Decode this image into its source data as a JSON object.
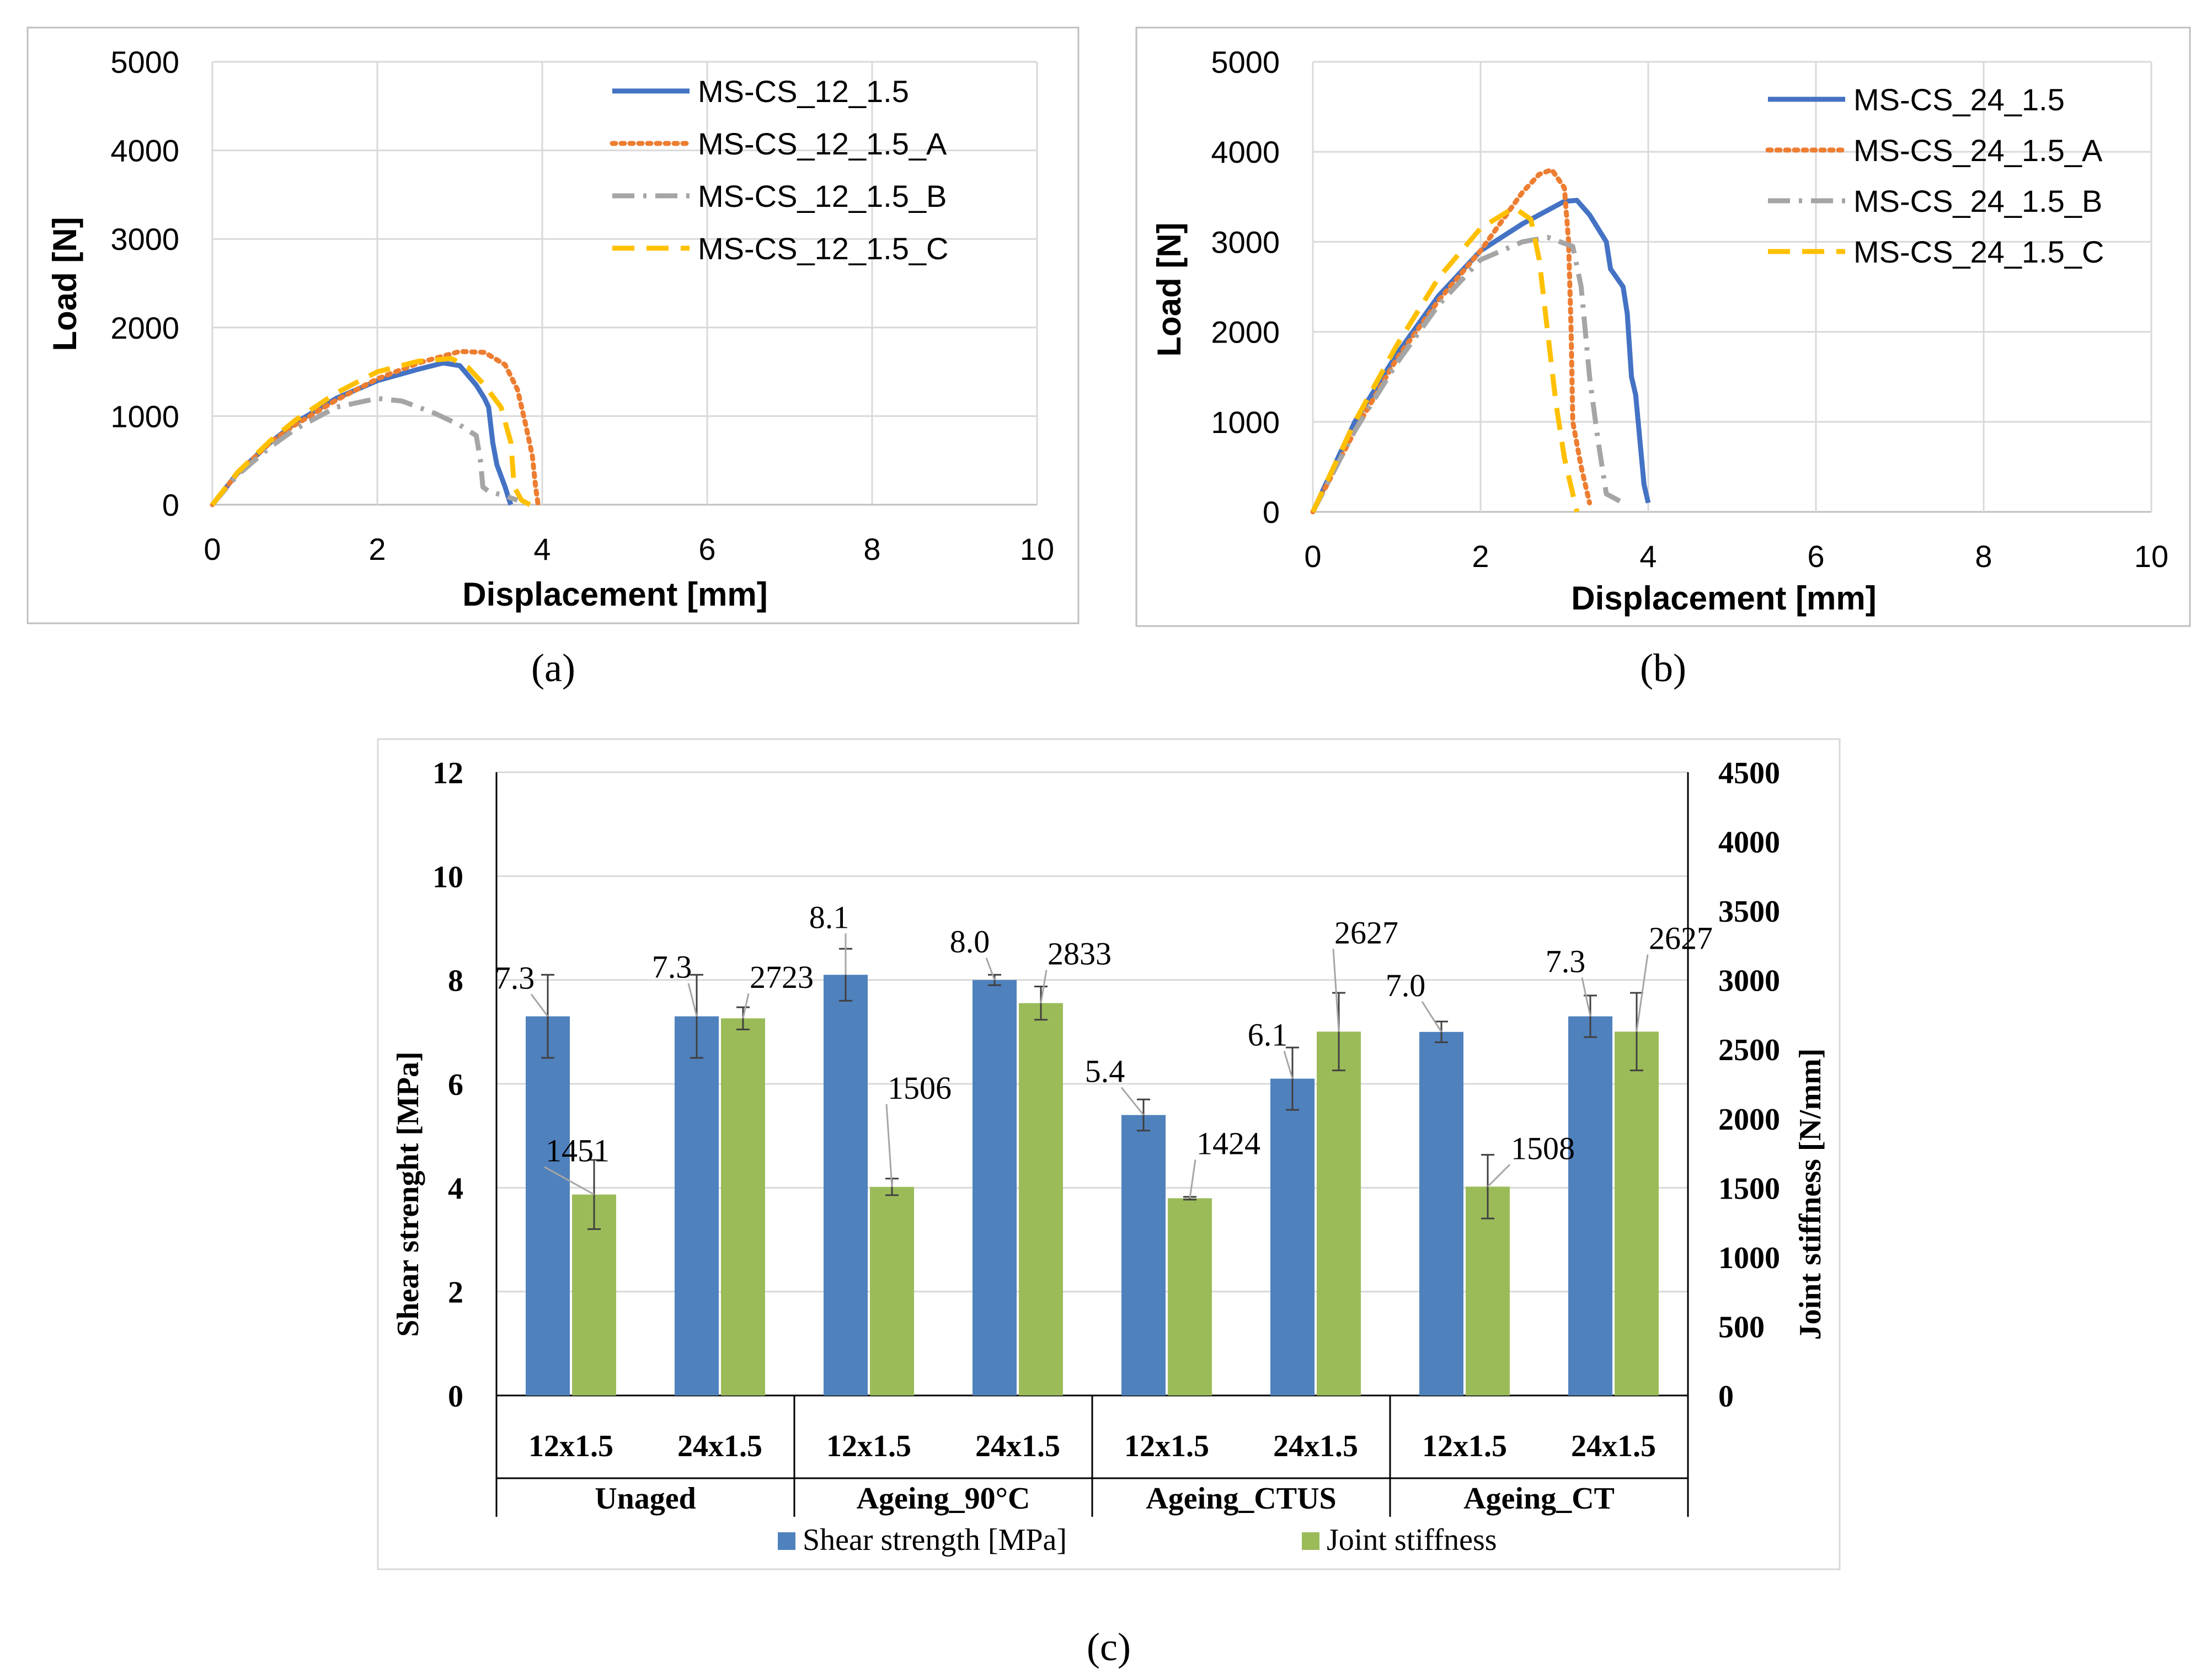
{
  "colors": {
    "blue": "#4472C4",
    "orange": "#ED7D31",
    "gray": "#A5A5A5",
    "yellow": "#FFC000",
    "bar_blue": "#4F81BD",
    "bar_green": "#9BBB59",
    "grid": "#D9D9D9",
    "frame": "#BFBFBF"
  },
  "panel_labels": {
    "a": "(a)",
    "b": "(b)",
    "c": "(c)"
  },
  "chart_data": [
    {
      "id": "a",
      "type": "line",
      "xlabel": "Displacement [mm]",
      "ylabel": "Load [N]",
      "xlim": [
        0,
        10
      ],
      "ylim": [
        0,
        5000
      ],
      "x_ticks": [
        "0",
        "2",
        "4",
        "6",
        "8",
        "10"
      ],
      "y_ticks": [
        "0",
        "1000",
        "2000",
        "3000",
        "4000",
        "5000"
      ],
      "legend_position": "top-right",
      "series": [
        {
          "name": "MS-CS_12_1.5",
          "style": "solid",
          "color": "#4472C4",
          "x": [
            0,
            0.3,
            0.7,
            1.0,
            1.5,
            2.0,
            2.5,
            2.8,
            3.0,
            3.2,
            3.3,
            3.35,
            3.4,
            3.45,
            3.55,
            3.6,
            3.62
          ],
          "y": [
            0,
            350,
            700,
            920,
            1200,
            1400,
            1530,
            1600,
            1570,
            1350,
            1200,
            1100,
            700,
            450,
            200,
            50,
            0
          ]
        },
        {
          "name": "MS-CS_12_1.5_A",
          "style": "dotted",
          "color": "#ED7D31",
          "x": [
            0,
            0.3,
            0.7,
            1.0,
            1.5,
            2.0,
            2.5,
            3.0,
            3.3,
            3.55,
            3.7,
            3.8,
            3.88,
            3.92,
            3.95
          ],
          "y": [
            0,
            350,
            700,
            900,
            1180,
            1420,
            1600,
            1730,
            1720,
            1580,
            1300,
            900,
            550,
            200,
            0
          ]
        },
        {
          "name": "MS-CS_12_1.5_B",
          "style": "dashdot",
          "color": "#A5A5A5",
          "x": [
            0,
            0.3,
            0.7,
            1.0,
            1.5,
            2.0,
            2.3,
            2.7,
            3.0,
            3.2,
            3.25,
            3.28,
            3.35,
            3.55,
            3.7
          ],
          "y": [
            0,
            330,
            650,
            850,
            1100,
            1200,
            1170,
            1030,
            900,
            780,
            500,
            200,
            150,
            100,
            50
          ]
        },
        {
          "name": "MS-CS_12_1.5_C",
          "style": "dashed",
          "color": "#FFC000",
          "x": [
            0,
            0.3,
            0.7,
            1.0,
            1.5,
            2.0,
            2.5,
            2.9,
            3.1,
            3.3,
            3.5,
            3.62,
            3.66,
            3.75,
            3.85
          ],
          "y": [
            0,
            360,
            720,
            950,
            1260,
            1500,
            1620,
            1650,
            1550,
            1350,
            1100,
            700,
            200,
            50,
            0
          ]
        }
      ]
    },
    {
      "id": "b",
      "type": "line",
      "xlabel": "Displacement [mm]",
      "ylabel": "Load [N]",
      "xlim": [
        0,
        10
      ],
      "ylim": [
        0,
        5000
      ],
      "x_ticks": [
        "0",
        "2",
        "4",
        "6",
        "8",
        "10"
      ],
      "y_ticks": [
        "0",
        "1000",
        "2000",
        "3000",
        "4000",
        "5000"
      ],
      "legend_position": "top-right",
      "series": [
        {
          "name": "MS-CS_24_1.5",
          "style": "solid",
          "color": "#4472C4",
          "x": [
            0,
            0.5,
            1.0,
            1.5,
            2.0,
            2.5,
            3.0,
            3.15,
            3.3,
            3.5,
            3.55,
            3.7,
            3.75,
            3.8,
            3.85,
            3.9,
            3.95,
            4.0
          ],
          "y": [
            0,
            1000,
            1750,
            2400,
            2900,
            3200,
            3450,
            3460,
            3300,
            3000,
            2700,
            2500,
            2200,
            1500,
            1300,
            800,
            300,
            100
          ]
        },
        {
          "name": "MS-CS_24_1.5_A",
          "style": "dotted",
          "color": "#ED7D31",
          "x": [
            0,
            0.5,
            1.0,
            1.5,
            2.0,
            2.5,
            2.7,
            2.85,
            3.0,
            3.05,
            3.08,
            3.1,
            3.2,
            3.3
          ],
          "y": [
            0,
            900,
            1700,
            2350,
            2900,
            3550,
            3750,
            3800,
            3600,
            3000,
            2000,
            1000,
            500,
            100
          ]
        },
        {
          "name": "MS-CS_24_1.5_B",
          "style": "dashdot",
          "color": "#A5A5A5",
          "x": [
            0,
            0.5,
            1.0,
            1.5,
            2.0,
            2.5,
            2.8,
            3.1,
            3.2,
            3.3,
            3.4,
            3.5,
            3.7
          ],
          "y": [
            0,
            900,
            1650,
            2300,
            2800,
            3000,
            3050,
            2950,
            2500,
            1500,
            800,
            200,
            100
          ]
        },
        {
          "name": "MS-CS_24_1.5_C",
          "style": "dashed",
          "color": "#FFC000",
          "x": [
            0,
            0.5,
            1.0,
            1.5,
            2.0,
            2.4,
            2.6,
            2.7,
            2.8,
            2.9,
            3.0,
            3.1,
            3.15
          ],
          "y": [
            0,
            1000,
            1850,
            2600,
            3150,
            3380,
            3250,
            2800,
            2000,
            1200,
            600,
            200,
            0
          ]
        }
      ]
    },
    {
      "id": "c",
      "type": "bar",
      "ylabel": "Shear strenght [MPa]",
      "y2label": "Joint stiffness [N/mm]",
      "ylim": [
        0,
        12
      ],
      "y2lim": [
        0,
        4500
      ],
      "y_ticks": [
        "0",
        "2",
        "4",
        "6",
        "8",
        "10",
        "12"
      ],
      "y2_ticks": [
        "0",
        "500",
        "1000",
        "1500",
        "2000",
        "2500",
        "3000",
        "3500",
        "4000",
        "4500"
      ],
      "groups": [
        "Unaged",
        "Ageing_90°C",
        "Ageing_CTUS",
        "Ageing_CT"
      ],
      "categories": [
        "12x1.5",
        "24x1.5",
        "12x1.5",
        "24x1.5",
        "12x1.5",
        "24x1.5",
        "12x1.5",
        "24x1.5"
      ],
      "legend_position": "bottom",
      "series": [
        {
          "name": "Shear strength [MPa]",
          "axis": "left",
          "color": "#4F81BD",
          "values": [
            7.3,
            7.3,
            8.1,
            8.0,
            5.4,
            6.1,
            7.0,
            7.3
          ],
          "labels": [
            "7.3",
            "7.3",
            "8.1",
            "8.0",
            "5.4",
            "6.1",
            "7.0",
            "7.3"
          ],
          "errors": [
            0.8,
            0.8,
            0.5,
            0.1,
            0.3,
            0.6,
            0.2,
            0.4
          ]
        },
        {
          "name": "Joint stiffness",
          "axis": "right",
          "color": "#9BBB59",
          "values": [
            1451,
            2723,
            1506,
            2833,
            1424,
            2627,
            1508,
            2627
          ],
          "labels": [
            "1451",
            "2723",
            "1506",
            "2833",
            "1424",
            "2627",
            "1508",
            "2627"
          ],
          "errors": [
            250,
            80,
            60,
            120,
            10,
            280,
            230,
            280
          ]
        }
      ]
    }
  ]
}
